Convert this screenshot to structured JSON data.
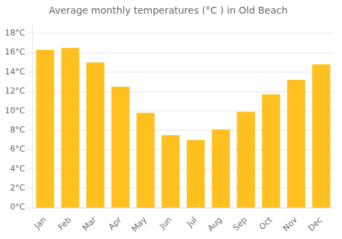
{
  "chart_data": {
    "type": "bar",
    "title": "Average monthly temperatures (°C ) in Old Beach",
    "categories": [
      "Jan",
      "Feb",
      "Mar",
      "Apr",
      "May",
      "Jun",
      "Jul",
      "Aug",
      "Sep",
      "Oct",
      "Nov",
      "Dec"
    ],
    "values": [
      16.3,
      16.5,
      15.0,
      12.5,
      9.8,
      7.5,
      7.0,
      8.1,
      9.9,
      11.7,
      13.2,
      14.8
    ],
    "color": "#FFC020",
    "ylim": [
      0,
      19
    ],
    "yticks": [
      {
        "value": 0,
        "label": "0°C"
      },
      {
        "value": 2,
        "label": "2°C"
      },
      {
        "value": 4,
        "label": "4°C"
      },
      {
        "value": 6,
        "label": "6°C"
      },
      {
        "value": 8,
        "label": "8°C"
      },
      {
        "value": 10,
        "label": "10°C"
      },
      {
        "value": 12,
        "label": "12°C"
      },
      {
        "value": 14,
        "label": "14°C"
      },
      {
        "value": 16,
        "label": "16°C"
      },
      {
        "value": 18,
        "label": "18°C"
      }
    ],
    "grid": true
  }
}
